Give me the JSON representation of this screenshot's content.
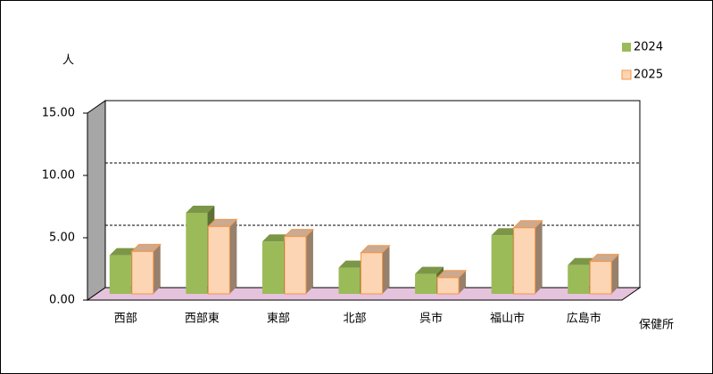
{
  "chart_data": {
    "type": "bar3d",
    "y_label": "人",
    "x_label": "保健所",
    "categories": [
      "西部",
      "西部東",
      "東部",
      "北部",
      "呉市",
      "福山市",
      "広島市"
    ],
    "series": [
      {
        "name": "2024",
        "color": "#9bbb59",
        "values": [
          3.1,
          6.5,
          4.2,
          2.1,
          1.6,
          4.7,
          2.3
        ]
      },
      {
        "name": "2025",
        "color": "#fcd5b4",
        "values": [
          3.4,
          5.4,
          4.6,
          3.3,
          1.3,
          5.3,
          2.6
        ]
      }
    ],
    "ylim": [
      0,
      15
    ],
    "yticks": [
      {
        "value": 0,
        "label": "0.00"
      },
      {
        "value": 5,
        "label": "5.00"
      },
      {
        "value": 10,
        "label": "10.00"
      },
      {
        "value": 15,
        "label": "15.00"
      }
    ],
    "grid": true,
    "legend": "top-right"
  }
}
